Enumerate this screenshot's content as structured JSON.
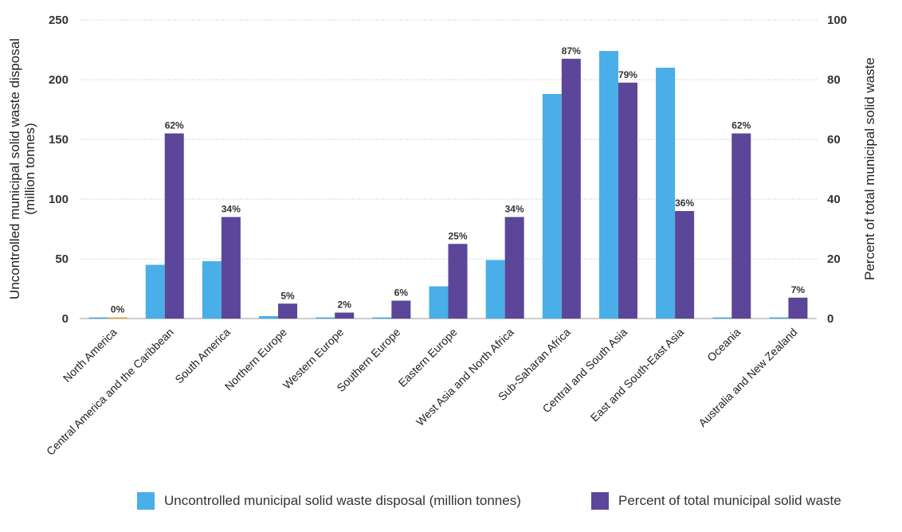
{
  "chart_data": {
    "type": "bar",
    "categories": [
      "North America",
      "Central America and the Caribbean",
      "South America",
      "Northern Europe",
      "Western Europe",
      "Southern Europe",
      "Eastern Europe",
      "West Asia and North Africa",
      "Sub-Saharan Africa",
      "Central and South Asia",
      "East and South-East Asia",
      "Oceania",
      "Australia and New Zealand"
    ],
    "series": [
      {
        "name": "Uncontrolled municipal solid waste disposal (million tonnes)",
        "axis": "left",
        "color": "#4aaee8",
        "values": [
          1,
          45,
          48,
          2,
          1,
          1,
          27,
          49,
          188,
          224,
          210,
          1,
          1
        ]
      },
      {
        "name": "Percent of total municipal solid waste",
        "axis": "right",
        "color": "#5b4699",
        "values": [
          0,
          62,
          34,
          5,
          2,
          6,
          25,
          34,
          87,
          79,
          36,
          62,
          7
        ],
        "data_labels": [
          "0%",
          "62%",
          "34%",
          "5%",
          "2%",
          "6%",
          "25%",
          "34%",
          "87%",
          "79%",
          "36%",
          "62%",
          "7%"
        ]
      }
    ],
    "ylabel": "Uncontrolled municipal solid waste disposal (million tonnes)",
    "ylabel_lines": [
      "Uncontrolled municipal solid waste disposal",
      "(million tonnes)"
    ],
    "ylim": [
      0,
      250
    ],
    "yticks": [
      0,
      50,
      100,
      150,
      200,
      250
    ],
    "y2label": "Percent of total municipal solid waste",
    "y2lim": [
      0,
      100
    ],
    "y2ticks": [
      0,
      20,
      40,
      60,
      80,
      100
    ],
    "grid": "horizontal dotted",
    "legend_position": "bottom-right"
  },
  "legend": {
    "items": [
      {
        "label": "Uncontrolled municipal solid waste disposal (million tonnes)",
        "color": "#4aaee8"
      },
      {
        "label": "Percent of total municipal solid waste",
        "color": "#5b4699"
      }
    ]
  }
}
